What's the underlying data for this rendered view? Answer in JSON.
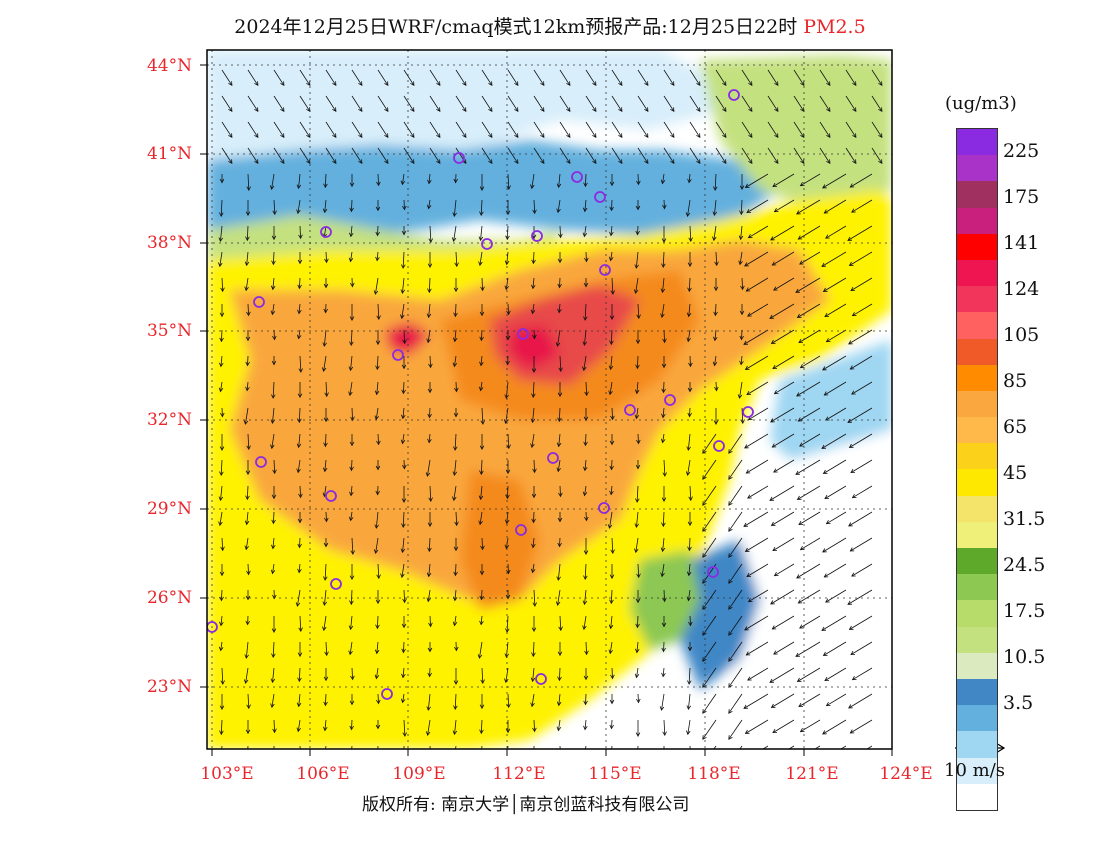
{
  "title": {
    "text": "2024年12月25日WRF/cmaq模式12km预报产品:12月25日22时",
    "pollutant": "PM2.5"
  },
  "map": {
    "lat_labels": [
      "44°N",
      "41°N",
      "38°N",
      "35°N",
      "32°N",
      "29°N",
      "26°N",
      "23°N"
    ],
    "lon_labels": [
      "103°E",
      "106°E",
      "109°E",
      "112°E",
      "115°E",
      "118°E",
      "121°E",
      "124°E"
    ],
    "colors": {
      "ocean_clean": "#ffffff",
      "low": "#d8eefa",
      "blue": "#9fd6f2",
      "blue_mid": "#63b0de",
      "blue_dark": "#4187c6",
      "green_light": "#c4e180",
      "green": "#8cc852",
      "yellow": "#fff200",
      "yellow_orange": "#fcd11a",
      "orange": "#f9a73e",
      "orange_dark": "#f48a1f",
      "red": "#e84a4a",
      "crimson": "#e8174a",
      "purple_marker": "#8a2be2"
    }
  },
  "colorbar": {
    "unit": "(ug/m3)",
    "ticks": [
      "225",
      "175",
      "141",
      "124",
      "105",
      "85",
      "65",
      "45",
      "31.5",
      "24.5",
      "17.5",
      "10.5",
      "3.5"
    ],
    "swatches": [
      "#8a2be2",
      "#a933c9",
      "#a03060",
      "#c8207c",
      "#ff0000",
      "#ee1550",
      "#f2355a",
      "#ff6060",
      "#f05a28",
      "#ff8c00",
      "#f9a73e",
      "#ffb84a",
      "#fcd11a",
      "#ffe800",
      "#f5e46a",
      "#eef07a",
      "#5ea82a",
      "#8cc852",
      "#b8dc6a",
      "#c4e180",
      "#dceac0",
      "#4187c6",
      "#63b0de",
      "#9fd6f2",
      "#d8eefa",
      "#ffffff"
    ]
  },
  "wind_legend": {
    "label": "10 m/s"
  },
  "footer": {
    "copyright": "版权所有: 南京大学│南京创蓝科技有限公司"
  }
}
